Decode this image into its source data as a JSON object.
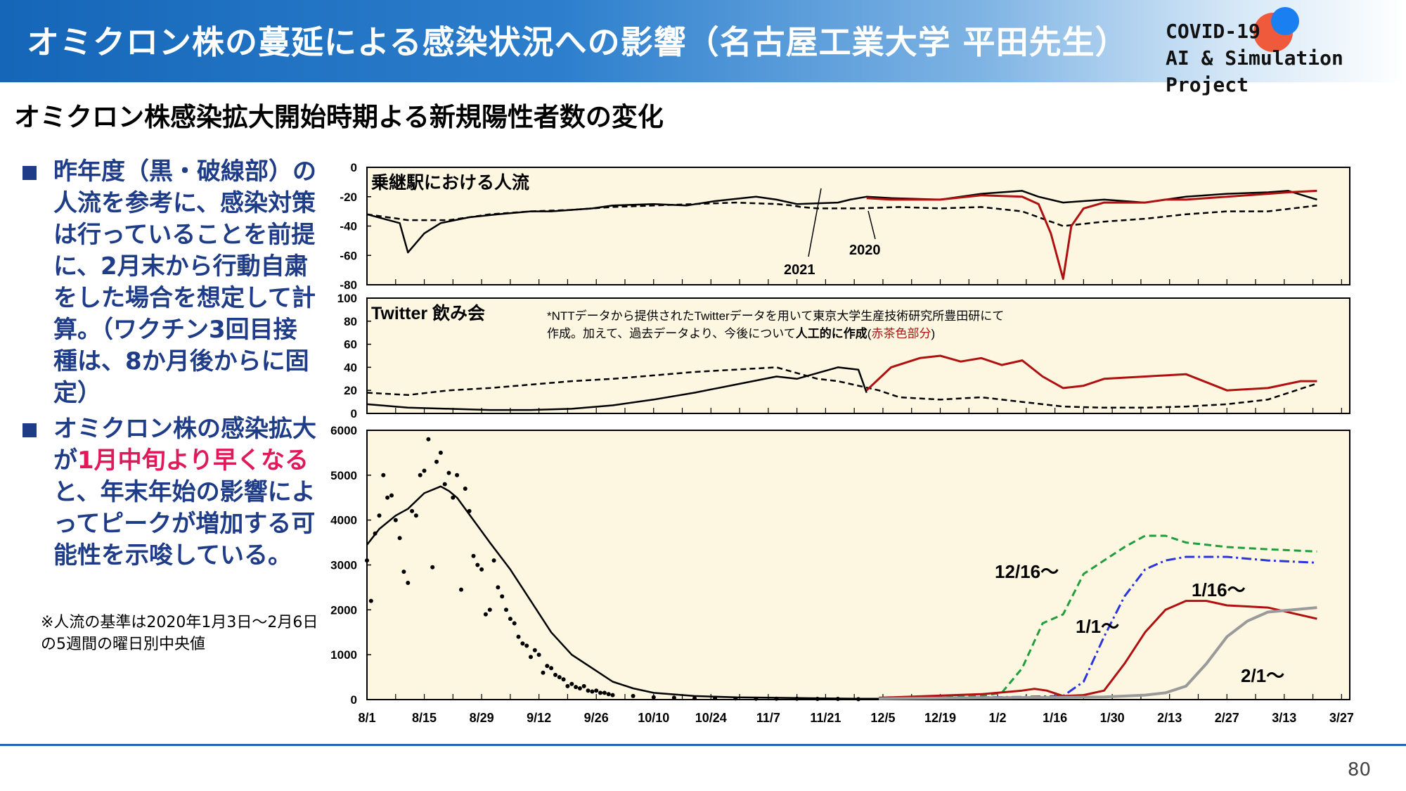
{
  "header": {
    "title": "オミクロン株の蔓延による感染状況への影響（名古屋工業大学 平田先生）",
    "logo_line1": "COVID-19",
    "logo_line2": "AI & Simulation Project"
  },
  "subtitle": "オミクロン株感染拡大開始時期よる新規陽性者数の変化",
  "bullets": [
    {
      "text": "昨年度（黒・破線部）の人流を参考に、感染対策は行っていることを前提に、2月末から行動自粛をした場合を想定して計算。（ワクチン3回目接種は、8か月後からに固定）"
    },
    {
      "pre": "オミクロン株の感染拡大が",
      "highlight": "1月中旬より早くなる",
      "post": "と、年末年始の影響によってピークが増加する可能性を示唆している。"
    }
  ],
  "note": "※人流の基準は2020年1月3日～2月6日の5週間の曜日別中央値",
  "page_number": "80",
  "colors": {
    "red": "#b01010",
    "green": "#1e9e3c",
    "blue": "#2a34e0",
    "gray": "#9a9a9a",
    "panel_bg": "#fdf6e0",
    "highlight": "#e0195a",
    "text_blue": "#1f3c88"
  },
  "chart_data": [
    {
      "type": "line",
      "title": "乗継駅における人流",
      "ylim": [
        -80,
        0
      ],
      "yticks": [
        "0",
        "-20",
        "-40",
        "-60",
        "-80"
      ],
      "labels": [
        "2021",
        "2020"
      ],
      "series": [
        {
          "name": "2021",
          "style": "solid-black",
          "x": [
            0,
            4,
            8,
            10,
            14,
            18,
            25,
            32,
            40,
            45,
            55,
            60,
            70,
            78,
            85,
            95,
            100,
            105,
            115,
            118,
            122,
            128,
            140,
            150,
            160,
            164,
            170,
            180,
            190,
            195,
            200,
            210,
            220,
            225,
            232
          ],
          "values": [
            -32,
            -35,
            -38,
            -58,
            -45,
            -38,
            -34,
            -32,
            -30,
            -30,
            -28,
            -26,
            -25,
            -26,
            -23,
            -20,
            -22,
            -25,
            -24,
            -22,
            -20,
            -21,
            -22,
            -18,
            -16,
            -20,
            -24,
            -22,
            -24,
            -22,
            -20,
            -18,
            -17,
            -16,
            -22
          ]
        },
        {
          "name": "2020",
          "style": "dashed-black",
          "x": [
            0,
            10,
            20,
            30,
            40,
            50,
            60,
            70,
            80,
            90,
            100,
            104,
            106,
            110,
            120,
            130,
            140,
            150,
            160,
            170,
            180,
            190,
            200,
            210,
            220,
            232
          ],
          "values": [
            -32,
            -36,
            -36,
            -32,
            -30,
            -29,
            -27,
            -26,
            -25,
            -24,
            -25,
            -26,
            -27,
            -28,
            -28,
            -27,
            -28,
            -27,
            -30,
            -40,
            -37,
            -35,
            -32,
            -30,
            -30,
            -26
          ]
        },
        {
          "name": "",
          "style": "solid-red",
          "x": [
            122,
            128,
            140,
            150,
            160,
            164,
            167,
            170,
            172,
            175,
            180,
            190,
            195,
            200,
            210,
            220,
            225,
            232
          ],
          "values": [
            -21,
            -22,
            -22,
            -19,
            -20,
            -25,
            -45,
            -76,
            -40,
            -28,
            -24,
            -24,
            -22,
            -22,
            -20,
            -18,
            -17,
            -16
          ]
        }
      ]
    },
    {
      "type": "line",
      "title": "Twitter 飲み会",
      "note": "*NTTデータから提供されたTwitterデータを用いて東京大学生産技術研究所豊田研にて作成。加えて、過去データより、今後について人工的に作成(赤茶色部分)",
      "note_bold": "人工的に作成",
      "note_red": "赤茶色部分",
      "ylim": [
        0,
        100
      ],
      "yticks": [
        "100",
        "80",
        "60",
        "40",
        "20",
        "0"
      ],
      "series": [
        {
          "name": "",
          "style": "solid-black",
          "x": [
            0,
            10,
            20,
            30,
            40,
            50,
            60,
            70,
            80,
            90,
            100,
            105,
            110,
            115,
            120,
            122
          ],
          "values": [
            8,
            5,
            4,
            3,
            3,
            4,
            7,
            12,
            18,
            25,
            32,
            30,
            35,
            40,
            38,
            18
          ]
        },
        {
          "name": "",
          "style": "dashed-black",
          "x": [
            0,
            10,
            20,
            30,
            40,
            50,
            60,
            70,
            80,
            90,
            100,
            105,
            110,
            115,
            120,
            125,
            130,
            140,
            150,
            160,
            170,
            180,
            190,
            200,
            210,
            220,
            232
          ],
          "values": [
            18,
            16,
            20,
            22,
            25,
            28,
            30,
            33,
            36,
            38,
            40,
            35,
            30,
            28,
            24,
            20,
            14,
            12,
            14,
            10,
            6,
            5,
            5,
            6,
            8,
            12,
            26
          ]
        },
        {
          "name": "",
          "style": "solid-red",
          "x": [
            122,
            128,
            135,
            140,
            145,
            150,
            155,
            160,
            165,
            170,
            175,
            180,
            190,
            200,
            210,
            220,
            228,
            232
          ],
          "values": [
            20,
            40,
            48,
            50,
            45,
            48,
            42,
            46,
            32,
            22,
            24,
            30,
            32,
            34,
            20,
            22,
            28,
            28
          ]
        }
      ]
    },
    {
      "type": "line",
      "xlabel": "",
      "ylabel": "",
      "ylim": [
        0,
        6000
      ],
      "yticks": [
        "6000",
        "5000",
        "4000",
        "3000",
        "2000",
        "1000",
        "0"
      ],
      "x_tick_labels": [
        "8/1",
        "8/15",
        "8/29",
        "9/12",
        "9/26",
        "10/10",
        "10/24",
        "11/7",
        "11/21",
        "12/5",
        "12/19",
        "1/2",
        "1/16",
        "1/30",
        "2/13",
        "2/27",
        "3/13",
        "3/27"
      ],
      "annotations": [
        "12/16～",
        "1/1～",
        "1/16～",
        "2/1～"
      ],
      "series": [
        {
          "name": "",
          "style": "solid-black",
          "x": [
            0,
            3,
            7,
            10,
            14,
            18,
            20,
            22,
            26,
            30,
            35,
            40,
            45,
            50,
            55,
            60,
            65,
            70,
            80,
            90,
            100,
            110,
            120,
            125
          ],
          "values": [
            3450,
            3800,
            4100,
            4250,
            4600,
            4750,
            4650,
            4500,
            4000,
            3500,
            2900,
            2200,
            1500,
            1000,
            700,
            400,
            250,
            150,
            80,
            50,
            40,
            30,
            20,
            20
          ]
        },
        {
          "name": "12/16～",
          "style": "dashed-green",
          "x": [
            125,
            140,
            150,
            155,
            160,
            165,
            170,
            175,
            180,
            185,
            190,
            195,
            200,
            205,
            210,
            220,
            232
          ],
          "values": [
            30,
            60,
            80,
            150,
            700,
            1700,
            1900,
            2800,
            3100,
            3400,
            3650,
            3650,
            3500,
            3450,
            3400,
            3350,
            3300
          ]
        },
        {
          "name": "1/1～",
          "style": "dashdot-blue",
          "x": [
            125,
            150,
            160,
            170,
            175,
            180,
            185,
            190,
            195,
            200,
            210,
            220,
            232
          ],
          "values": [
            30,
            50,
            60,
            80,
            400,
            1400,
            2300,
            2900,
            3100,
            3180,
            3180,
            3100,
            3050
          ]
        },
        {
          "name": "1/16～",
          "style": "solid-red",
          "x": [
            125,
            150,
            160,
            163,
            166,
            170,
            175,
            180,
            185,
            190,
            195,
            200,
            205,
            210,
            220,
            232
          ],
          "values": [
            40,
            120,
            200,
            240,
            200,
            80,
            100,
            200,
            800,
            1500,
            2000,
            2200,
            2200,
            2100,
            2050,
            1800
          ]
        },
        {
          "name": "2/1～",
          "style": "solid-gray",
          "x": [
            125,
            150,
            170,
            180,
            190,
            195,
            200,
            205,
            210,
            215,
            220,
            232
          ],
          "values": [
            20,
            40,
            50,
            60,
            100,
            150,
            300,
            800,
            1400,
            1750,
            1950,
            2050
          ]
        }
      ],
      "scatter": {
        "x": [
          0,
          1,
          2,
          3,
          4,
          5,
          6,
          7,
          8,
          9,
          10,
          11,
          12,
          13,
          14,
          15,
          16,
          17,
          18,
          19,
          20,
          21,
          22,
          23,
          24,
          25,
          26,
          27,
          28,
          29,
          30,
          31,
          32,
          33,
          34,
          35,
          36,
          37,
          38,
          39,
          40,
          41,
          42,
          43,
          44,
          45,
          46,
          47,
          48,
          49,
          50,
          51,
          52,
          53,
          54,
          55,
          56,
          57,
          58,
          59,
          60,
          65,
          70,
          75,
          80,
          85,
          90,
          95,
          100,
          105,
          110,
          115,
          120
        ],
        "values": [
          3100,
          2200,
          3700,
          4100,
          5000,
          4500,
          4550,
          4000,
          3600,
          2850,
          2600,
          4200,
          4100,
          5000,
          5100,
          5800,
          2950,
          5300,
          5500,
          4800,
          5050,
          4500,
          5000,
          2450,
          4700,
          4200,
          3200,
          3000,
          2900,
          1900,
          2000,
          3100,
          2500,
          2300,
          2000,
          1800,
          1700,
          1400,
          1250,
          1200,
          950,
          1100,
          1000,
          600,
          750,
          700,
          550,
          500,
          450,
          300,
          350,
          280,
          250,
          300,
          200,
          180,
          200,
          150,
          150,
          120,
          100,
          80,
          50,
          40,
          30,
          30,
          25,
          20,
          20,
          20,
          15,
          15,
          10
        ]
      }
    }
  ]
}
